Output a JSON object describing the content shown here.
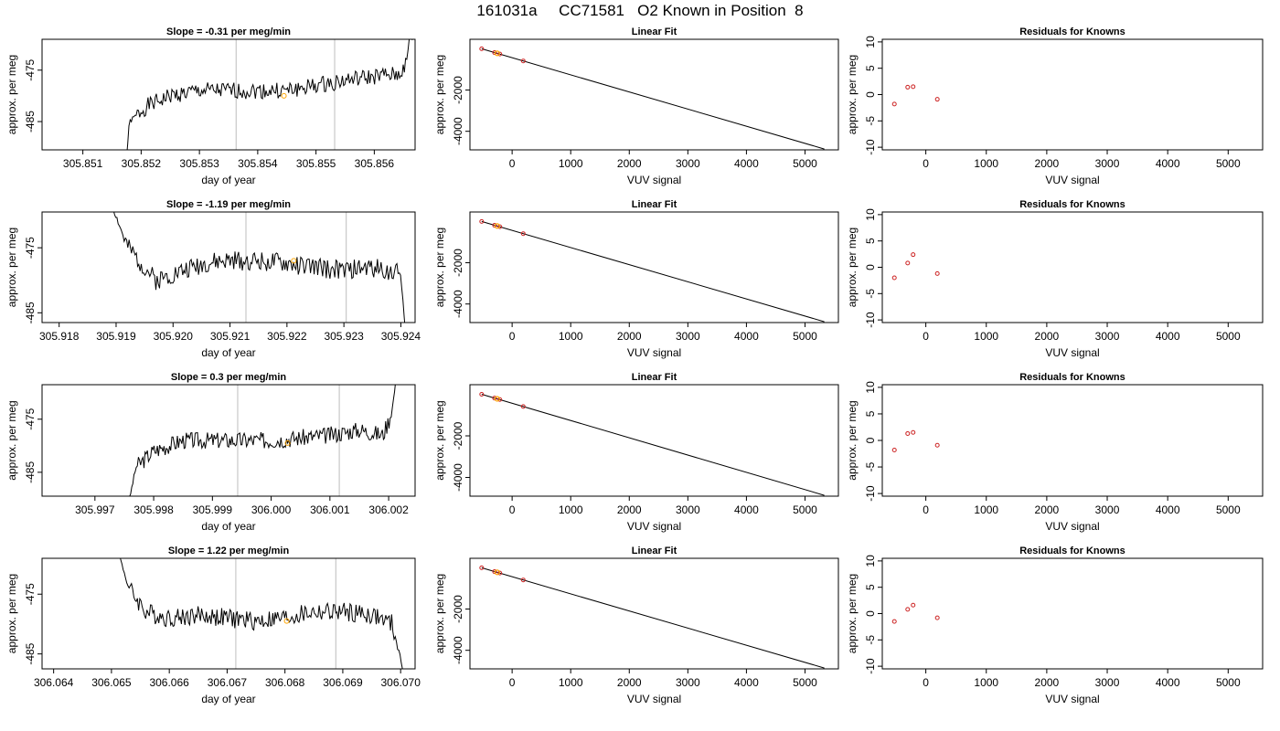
{
  "page_title": "161031a     CC71581   O2 Known in Position  8",
  "colors": {
    "trace": "#000000",
    "marker_orange": "#ffa500",
    "marker_red": "#cc2222",
    "vline": "#c8c8c8",
    "frame": "#000000"
  },
  "chart_data": [
    {
      "type": "line",
      "title": "Slope =  -0.31  per meg/min",
      "xlabel": "day of year",
      "ylabel": "approx. per meg",
      "xticks": [
        305.851,
        305.852,
        305.853,
        305.854,
        305.855,
        305.856
      ],
      "xtick_labels": [
        "305.851",
        "305.852",
        "305.853",
        "305.854",
        "305.855",
        "305.856"
      ],
      "yticks": [
        -475,
        -485
      ],
      "ytick_labels": [
        "-475",
        "-485"
      ],
      "xlim": [
        305.8503,
        305.8567
      ],
      "ylim": [
        -490.5,
        -469
      ],
      "trace_x_range": [
        305.85175,
        305.85666
      ],
      "trace_anchors": [
        [
          305.85175,
          -492
        ],
        [
          305.8518,
          -485
        ],
        [
          305.8521,
          -482
        ],
        [
          305.8525,
          -480
        ],
        [
          305.853,
          -479
        ],
        [
          305.8535,
          -479
        ],
        [
          305.854,
          -479
        ],
        [
          305.8545,
          -479
        ],
        [
          305.855,
          -478
        ],
        [
          305.8555,
          -477
        ],
        [
          305.8562,
          -476
        ],
        [
          305.8564,
          -476
        ],
        [
          305.85655,
          -474
        ],
        [
          305.8566,
          -469
        ]
      ],
      "trace_seed": 1,
      "noise_amplitude": 1.6,
      "vlines": [
        305.85363,
        305.85532
      ],
      "marker": [
        305.85445,
        -480
      ]
    },
    {
      "type": "scatter",
      "title": "Linear Fit",
      "xlabel": "VUV signal",
      "ylabel": "approx. per meg",
      "xticks": [
        0,
        1000,
        2000,
        3000,
        4000,
        5000
      ],
      "xtick_labels": [
        "0",
        "1000",
        "2000",
        "3000",
        "4000",
        "5000"
      ],
      "yticks": [
        -2000,
        -4000
      ],
      "ytick_labels": [
        "-2000",
        "-4000"
      ],
      "xlim": [
        -720,
        5570
      ],
      "ylim": [
        -4900,
        460
      ],
      "fit_line": [
        [
          -520,
          0
        ],
        [
          5330,
          -4860
        ]
      ],
      "points": [
        [
          -520,
          0
        ],
        [
          -300,
          -185
        ],
        [
          -210,
          -255
        ],
        [
          190,
          -590
        ]
      ],
      "highlight_point": [
        -255,
        -220
      ]
    },
    {
      "type": "scatter",
      "title": "Residuals for Knowns",
      "xlabel": "VUV signal",
      "ylabel": "approx. per meg",
      "xticks": [
        0,
        1000,
        2000,
        3000,
        4000,
        5000
      ],
      "xtick_labels": [
        "0",
        "1000",
        "2000",
        "3000",
        "4000",
        "5000"
      ],
      "yticks": [
        10,
        5,
        0,
        -5,
        -10
      ],
      "ytick_labels": [
        "10",
        "5",
        "0",
        "-5",
        "-10"
      ],
      "xlim": [
        -720,
        5570
      ],
      "ylim": [
        -10.5,
        10.5
      ],
      "points": [
        [
          -520,
          -1.8
        ],
        [
          -300,
          1.4
        ],
        [
          -210,
          1.5
        ],
        [
          190,
          -0.9
        ]
      ]
    },
    {
      "type": "line",
      "title": "Slope =  -1.19  per meg/min",
      "xlabel": "day of year",
      "ylabel": "approx. per meg",
      "xticks": [
        305.918,
        305.919,
        305.92,
        305.921,
        305.922,
        305.923,
        305.924
      ],
      "xtick_labels": [
        "305.918",
        "305.919",
        "305.920",
        "305.921",
        "305.922",
        "305.923",
        "305.924"
      ],
      "yticks": [
        -475,
        -485
      ],
      "ytick_labels": [
        "-475",
        "-485"
      ],
      "xlim": [
        305.9177,
        305.92425
      ],
      "ylim": [
        -486.5,
        -469.5
      ],
      "trace_x_range": [
        305.91895,
        305.92408
      ],
      "trace_anchors": [
        [
          305.91895,
          -469
        ],
        [
          305.9192,
          -475
        ],
        [
          305.9195,
          -478
        ],
        [
          305.9197,
          -480
        ],
        [
          305.92,
          -479
        ],
        [
          305.9205,
          -477.5
        ],
        [
          305.921,
          -477
        ],
        [
          305.9215,
          -477
        ],
        [
          305.922,
          -477.5
        ],
        [
          305.9225,
          -478
        ],
        [
          305.923,
          -478.5
        ],
        [
          305.9235,
          -478
        ],
        [
          305.924,
          -479
        ],
        [
          305.92408,
          -488
        ]
      ],
      "trace_seed": 2,
      "noise_amplitude": 1.5,
      "vlines": [
        305.92128,
        305.92304
      ],
      "marker": [
        305.92212,
        -477
      ]
    },
    {
      "type": "scatter",
      "title": "Linear Fit",
      "xlabel": "VUV signal",
      "ylabel": "approx. per meg",
      "xticks": [
        0,
        1000,
        2000,
        3000,
        4000,
        5000
      ],
      "xtick_labels": [
        "0",
        "1000",
        "2000",
        "3000",
        "4000",
        "5000"
      ],
      "yticks": [
        -2000,
        -4000
      ],
      "ytick_labels": [
        "-2000",
        "-4000"
      ],
      "xlim": [
        -720,
        5570
      ],
      "ylim": [
        -4900,
        460
      ],
      "fit_line": [
        [
          -520,
          0
        ],
        [
          5330,
          -4860
        ]
      ],
      "points": [
        [
          -520,
          0
        ],
        [
          -300,
          -185
        ],
        [
          -210,
          -255
        ],
        [
          190,
          -590
        ]
      ],
      "highlight_point": [
        -255,
        -220
      ]
    },
    {
      "type": "scatter",
      "title": "Residuals for Knowns",
      "xlabel": "VUV signal",
      "ylabel": "approx. per meg",
      "xticks": [
        0,
        1000,
        2000,
        3000,
        4000,
        5000
      ],
      "xtick_labels": [
        "0",
        "1000",
        "2000",
        "3000",
        "4000",
        "5000"
      ],
      "yticks": [
        10,
        5,
        0,
        -5,
        -10
      ],
      "ytick_labels": [
        "10",
        "5",
        "0",
        "-5",
        "-10"
      ],
      "xlim": [
        -720,
        5570
      ],
      "ylim": [
        -10.5,
        10.5
      ],
      "points": [
        [
          -520,
          -2.0
        ],
        [
          -300,
          0.8
        ],
        [
          -210,
          2.4
        ],
        [
          190,
          -1.2
        ]
      ]
    },
    {
      "type": "line",
      "title": "Slope =  0.3  per meg/min",
      "xlabel": "day of year",
      "ylabel": "approx. per meg",
      "xticks": [
        305.997,
        305.998,
        305.999,
        306.0,
        306.001,
        306.002
      ],
      "xtick_labels": [
        "305.997",
        "305.998",
        "305.999",
        "306.000",
        "306.001",
        "306.002"
      ],
      "yticks": [
        -475,
        -485
      ],
      "ytick_labels": [
        "-475",
        "-485"
      ],
      "xlim": [
        305.9961,
        306.00245
      ],
      "ylim": [
        -489.5,
        -468.5
      ],
      "trace_x_range": [
        305.99757,
        306.00212
      ],
      "trace_anchors": [
        [
          305.99757,
          -491
        ],
        [
          305.9977,
          -484
        ],
        [
          305.998,
          -481
        ],
        [
          305.9985,
          -479
        ],
        [
          305.999,
          -479
        ],
        [
          305.9995,
          -479
        ],
        [
          306.0,
          -479
        ],
        [
          306.0005,
          -478.5
        ],
        [
          306.001,
          -478
        ],
        [
          306.0015,
          -477
        ],
        [
          306.0019,
          -478
        ],
        [
          306.00205,
          -474
        ],
        [
          306.00212,
          -468
        ]
      ],
      "trace_seed": 3,
      "noise_amplitude": 1.6,
      "vlines": [
        305.99943,
        306.00116
      ],
      "marker": [
        306.00028,
        -479.5
      ]
    },
    {
      "type": "scatter",
      "title": "Linear Fit",
      "xlabel": "VUV signal",
      "ylabel": "approx. per meg",
      "xticks": [
        0,
        1000,
        2000,
        3000,
        4000,
        5000
      ],
      "xtick_labels": [
        "0",
        "1000",
        "2000",
        "3000",
        "4000",
        "5000"
      ],
      "yticks": [
        -2000,
        -4000
      ],
      "ytick_labels": [
        "-2000",
        "-4000"
      ],
      "xlim": [
        -720,
        5570
      ],
      "ylim": [
        -4900,
        460
      ],
      "fit_line": [
        [
          -520,
          0
        ],
        [
          5330,
          -4860
        ]
      ],
      "points": [
        [
          -520,
          0
        ],
        [
          -300,
          -185
        ],
        [
          -210,
          -255
        ],
        [
          190,
          -590
        ]
      ],
      "highlight_point": [
        -255,
        -220
      ]
    },
    {
      "type": "scatter",
      "title": "Residuals for Knowns",
      "xlabel": "VUV signal",
      "ylabel": "approx. per meg",
      "xticks": [
        0,
        1000,
        2000,
        3000,
        4000,
        5000
      ],
      "xtick_labels": [
        "0",
        "1000",
        "2000",
        "3000",
        "4000",
        "5000"
      ],
      "yticks": [
        10,
        5,
        0,
        -5,
        -10
      ],
      "ytick_labels": [
        "10",
        "5",
        "0",
        "-5",
        "-10"
      ],
      "xlim": [
        -720,
        5570
      ],
      "ylim": [
        -10.5,
        10.5
      ],
      "points": [
        [
          -520,
          -1.8
        ],
        [
          -300,
          1.3
        ],
        [
          -210,
          1.5
        ],
        [
          190,
          -0.9
        ]
      ]
    },
    {
      "type": "line",
      "title": "Slope =  1.22  per meg/min",
      "xlabel": "day of year",
      "ylabel": "approx. per meg",
      "xticks": [
        306.064,
        306.065,
        306.066,
        306.067,
        306.068,
        306.069,
        306.07
      ],
      "xtick_labels": [
        "306.064",
        "306.065",
        "306.066",
        "306.067",
        "306.068",
        "306.069",
        "306.070"
      ],
      "yticks": [
        -475,
        -485
      ],
      "ytick_labels": [
        "-475",
        "-485"
      ],
      "xlim": [
        306.0638,
        306.07025
      ],
      "ylim": [
        -487.5,
        -469
      ],
      "trace_x_range": [
        306.06512,
        306.07005
      ],
      "trace_anchors": [
        [
          306.06512,
          -468
        ],
        [
          306.0653,
          -474
        ],
        [
          306.0656,
          -478
        ],
        [
          306.066,
          -479
        ],
        [
          306.0665,
          -478.5
        ],
        [
          306.067,
          -479
        ],
        [
          306.0675,
          -479.5
        ],
        [
          306.068,
          -479
        ],
        [
          306.0685,
          -478
        ],
        [
          306.069,
          -478
        ],
        [
          306.0695,
          -478.5
        ],
        [
          306.06985,
          -480
        ],
        [
          306.07005,
          -488
        ]
      ],
      "trace_seed": 4,
      "noise_amplitude": 1.6,
      "vlines": [
        306.06715,
        306.06888
      ],
      "marker": [
        306.06803,
        -479.5
      ]
    },
    {
      "type": "scatter",
      "title": "Linear Fit",
      "xlabel": "VUV signal",
      "ylabel": "approx. per meg",
      "xticks": [
        0,
        1000,
        2000,
        3000,
        4000,
        5000
      ],
      "xtick_labels": [
        "0",
        "1000",
        "2000",
        "3000",
        "4000",
        "5000"
      ],
      "yticks": [
        -2000,
        -4000
      ],
      "ytick_labels": [
        "-2000",
        "-4000"
      ],
      "xlim": [
        -720,
        5570
      ],
      "ylim": [
        -4900,
        460
      ],
      "fit_line": [
        [
          -520,
          0
        ],
        [
          5330,
          -4860
        ]
      ],
      "points": [
        [
          -520,
          0
        ],
        [
          -300,
          -185
        ],
        [
          -210,
          -255
        ],
        [
          190,
          -590
        ]
      ],
      "highlight_point": [
        -255,
        -220
      ]
    },
    {
      "type": "scatter",
      "title": "Residuals for Knowns",
      "xlabel": "VUV signal",
      "ylabel": "approx. per meg",
      "xticks": [
        0,
        1000,
        2000,
        3000,
        4000,
        5000
      ],
      "xtick_labels": [
        "0",
        "1000",
        "2000",
        "3000",
        "4000",
        "5000"
      ],
      "yticks": [
        10,
        5,
        0,
        -5,
        -10
      ],
      "ytick_labels": [
        "10",
        "5",
        "0",
        "-5",
        "-10"
      ],
      "xlim": [
        -720,
        5570
      ],
      "ylim": [
        -10.5,
        10.5
      ],
      "points": [
        [
          -520,
          -1.5
        ],
        [
          -300,
          0.8
        ],
        [
          -210,
          1.6
        ],
        [
          190,
          -0.8
        ]
      ]
    }
  ]
}
